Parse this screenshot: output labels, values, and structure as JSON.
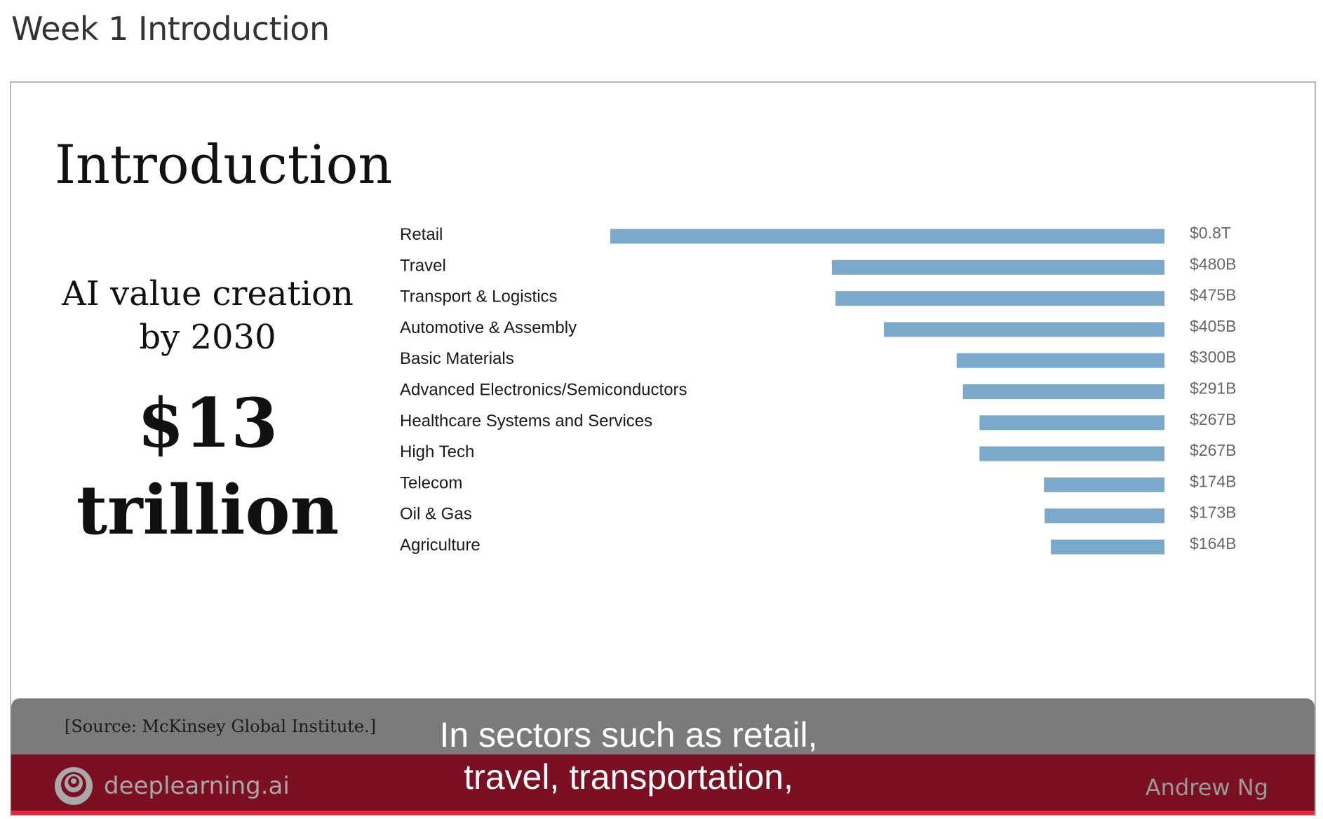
{
  "page": {
    "title": "Week 1 Introduction"
  },
  "slide": {
    "title": "Introduction",
    "value_line1": "AI value creation",
    "value_line2": "by 2030",
    "value_big1": "$13",
    "value_big2": "trillion",
    "source": "[Source: McKinsey Global Institute.]",
    "logo_text": "deeplearning.ai",
    "author": "Andrew Ng"
  },
  "caption": {
    "line1": "In sectors such as retail,",
    "line2": "travel, transportation,"
  },
  "colors": {
    "bar": "#7ba9cb",
    "lower_band": "#7a1022",
    "caption_band": "#7b7b7b"
  },
  "chart_data": {
    "type": "bar",
    "orientation": "horizontal",
    "unit": "USD billions",
    "categories": [
      "Retail",
      "Travel",
      "Transport & Logistics",
      "Automotive & Assembly",
      "Basic Materials",
      "Advanced Electronics/Semiconductors",
      "Healthcare Systems and Services",
      "High Tech",
      "Telecom",
      "Oil & Gas",
      "Agriculture"
    ],
    "values": [
      800,
      480,
      475,
      405,
      300,
      291,
      267,
      267,
      174,
      173,
      164
    ],
    "value_labels": [
      "$0.8T",
      "$480B",
      "$475B",
      "$405B",
      "$300B",
      "$291B",
      "$267B",
      "$267B",
      "$174B",
      "$173B",
      "$164B"
    ],
    "xlim": [
      0,
      800
    ],
    "grid": false,
    "legend": "none"
  }
}
